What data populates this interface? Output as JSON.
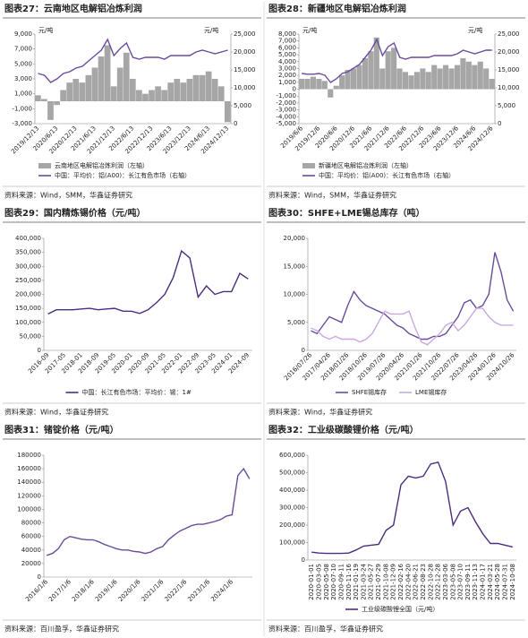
{
  "chart_data": [
    {
      "type": "bar_line",
      "title": "图表27：云南地区电解铝冶炼利润",
      "source": "资料来源：Wind，SMM，华鑫证券研究",
      "ylabel": "元/吨",
      "y2label": "元/吨",
      "categories": [
        "2019/12/13",
        null,
        null,
        "2020/6/13",
        null,
        null,
        "2020/12/13",
        null,
        null,
        "2021/6/13",
        null,
        null,
        "2021/12/13",
        null,
        null,
        "2022/6/13",
        null,
        null,
        "2022/12/13",
        null,
        null,
        "2023/6/13",
        null,
        null,
        "2023/12/13",
        null,
        null,
        "2024/6/13",
        null,
        null,
        "2024/12/13"
      ],
      "series": [
        {
          "name": "云南地区电解铝冶炼利润（左轴）",
          "color": "#a6a6a6",
          "style": "bar",
          "axis": "y",
          "values": [
            800,
            300,
            -2500,
            -500,
            1500,
            2500,
            3000,
            2500,
            3500,
            4500,
            6000,
            7500,
            2000,
            4500,
            6500,
            3000,
            1500,
            1000,
            1500,
            2000,
            1500,
            2500,
            3000,
            2500,
            3000,
            3500,
            3500,
            4000,
            3000,
            2000,
            -2800
          ]
        },
        {
          "name": "中国：平均价：铝(A00)：长江有色市场（右轴）",
          "color": "#6a4c9c",
          "style": "line",
          "axis": "y2",
          "values": [
            14000,
            13500,
            11500,
            12500,
            14000,
            14500,
            15500,
            16000,
            17500,
            19000,
            20500,
            23500,
            19000,
            21000,
            22500,
            18500,
            18000,
            18500,
            18500,
            18500,
            18000,
            19000,
            19000,
            19000,
            19000,
            20000,
            20500,
            20000,
            19500,
            20000,
            20500
          ]
        }
      ],
      "ylim": [
        -3000,
        9000
      ],
      "yticks": [
        {
          "value": -3000,
          "label": "-3,000"
        },
        {
          "value": -1000,
          "label": "-1,000"
        },
        {
          "value": 1000,
          "label": "1,000"
        },
        {
          "value": 3000,
          "label": "3,000"
        },
        {
          "value": 5000,
          "label": "5,000"
        },
        {
          "value": 7000,
          "label": "7,000"
        },
        {
          "value": 9000,
          "label": "9,000"
        }
      ],
      "y2lim": [
        0,
        25000
      ],
      "y2ticks": [
        0,
        {
          "value": 5000,
          "label": "5,000"
        },
        {
          "value": 10000,
          "label": "10,000"
        },
        {
          "value": 15000,
          "label": "15,000"
        },
        {
          "value": 20000,
          "label": "20,000"
        },
        {
          "value": 25000,
          "label": "25,000"
        }
      ]
    },
    {
      "type": "bar_line",
      "title": "图表28：新疆地区电解铝冶炼利润",
      "source": "资料来源：Wind，SMM，华鑫证券研究",
      "ylabel": "元/吨",
      "y2label": "元/吨",
      "categories": [
        "2019/6/6",
        null,
        null,
        "2019/12/6",
        null,
        null,
        "2020/6/6",
        null,
        null,
        "2020/12/6",
        null,
        null,
        "2021/6/6",
        null,
        null,
        "2021/12/6",
        null,
        null,
        "2022/6/6",
        null,
        null,
        "2022/12/6",
        null,
        null,
        "2023/6/6",
        null,
        null,
        "2023/12/6",
        null,
        null,
        "2024/6/6",
        null,
        null,
        "2024/12/6"
      ],
      "series": [
        {
          "name": "新疆地区电解铝冶炼利润（左轴）",
          "color": "#a6a6a6",
          "style": "bar",
          "axis": "y",
          "values": [
            1500,
            1500,
            1800,
            1500,
            1200,
            -1200,
            500,
            2000,
            2800,
            3000,
            3500,
            4500,
            5500,
            7500,
            3000,
            5500,
            6000,
            3000,
            2500,
            2000,
            2500,
            3000,
            2500,
            3500,
            3000,
            3500,
            3000,
            3500,
            4500,
            4000,
            3500,
            4000,
            3000,
            1500
          ]
        },
        {
          "name": "中国：平均价：铝(A00)：长江有色市场（右轴）",
          "color": "#6a4c9c",
          "style": "line",
          "axis": "y2",
          "values": [
            14000,
            13800,
            13800,
            14000,
            13500,
            11500,
            12500,
            14000,
            14500,
            15500,
            16500,
            18500,
            20500,
            23500,
            19000,
            21500,
            22500,
            18500,
            18000,
            18500,
            18500,
            18500,
            18500,
            19000,
            19000,
            19000,
            19000,
            19500,
            20500,
            20000,
            19500,
            20000,
            20500,
            20500
          ]
        }
      ],
      "ylim": [
        -5000,
        8000
      ],
      "yticks": [
        {
          "value": -5000,
          "label": "-5,000"
        },
        {
          "value": -4000,
          "label": "-4,000"
        },
        {
          "value": -3000,
          "label": "-3,000"
        },
        {
          "value": -2000,
          "label": "-2,000"
        },
        {
          "value": -1000,
          "label": "-1,000"
        },
        0,
        {
          "value": 1000,
          "label": "1,000"
        },
        {
          "value": 2000,
          "label": "2,000"
        },
        {
          "value": 3000,
          "label": "3,000"
        },
        {
          "value": 4000,
          "label": "4,000"
        },
        {
          "value": 5000,
          "label": "5,000"
        },
        {
          "value": 6000,
          "label": "6,000"
        },
        {
          "value": 7000,
          "label": "7,000"
        },
        {
          "value": 8000,
          "label": "8,000"
        }
      ],
      "y2lim": [
        0,
        25000
      ],
      "y2ticks": [
        0,
        {
          "value": 5000,
          "label": "5,000"
        },
        {
          "value": 10000,
          "label": "10,000"
        },
        {
          "value": 15000,
          "label": "15,000"
        },
        {
          "value": 20000,
          "label": "20,000"
        },
        {
          "value": 25000,
          "label": "25,000"
        }
      ]
    },
    {
      "type": "line",
      "title": "图表29：国内精炼锡价格（元/吨）",
      "source": "资料来源：Wind，华鑫证券研究",
      "categories": [
        "2016-09",
        null,
        "2017-05",
        null,
        "2018-01",
        null,
        "2018-09",
        null,
        "2019-05",
        null,
        "2020-01",
        null,
        "2020-09",
        null,
        "2021-05",
        null,
        "2022-01",
        null,
        "2022-09",
        null,
        "2023-05",
        null,
        "2024-01",
        null,
        "2024-09"
      ],
      "series": [
        {
          "name": "中国：长江有色市场：平均价：锡：1#",
          "color": "#4b2d7f",
          "values": [
            130000,
            145000,
            145000,
            145000,
            148000,
            150000,
            145000,
            148000,
            150000,
            140000,
            140000,
            132000,
            145000,
            170000,
            200000,
            260000,
            355000,
            330000,
            190000,
            230000,
            200000,
            210000,
            210000,
            275000,
            255000
          ]
        }
      ],
      "ylim": [
        0,
        400000
      ],
      "yticks": [
        0,
        {
          "value": 50000,
          "label": "50,000"
        },
        {
          "value": 100000,
          "label": "100,000"
        },
        {
          "value": 150000,
          "label": "150,000"
        },
        {
          "value": 200000,
          "label": "200,000"
        },
        {
          "value": 250000,
          "label": "250,000"
        },
        {
          "value": 300000,
          "label": "300,000"
        },
        {
          "value": 350000,
          "label": "350,000"
        },
        {
          "value": 400000,
          "label": "400,000"
        }
      ]
    },
    {
      "type": "line",
      "title": "图表30：SHFE+LME锡总库存（吨）",
      "source": "资料来源：Wind，华鑫证券研究",
      "categories": [
        "2016/07/26",
        null,
        null,
        "2017/04/26",
        null,
        null,
        "2018/01/26",
        null,
        null,
        "2018/10/26",
        null,
        null,
        "2019/07/26",
        null,
        null,
        "2020/04/26",
        null,
        null,
        "2021/01/26",
        null,
        null,
        "2021/10/26",
        null,
        null,
        "2022/07/26",
        null,
        null,
        "2023/04/26",
        null,
        null,
        "2024/01/26",
        null,
        null,
        "2024/10/26"
      ],
      "series": [
        {
          "name": "SHFE锡库存",
          "color": "#6a4c9c",
          "values": [
            3500,
            3000,
            4500,
            6000,
            5500,
            5000,
            8000,
            10500,
            9000,
            8000,
            7500,
            7000,
            6500,
            5500,
            4500,
            4000,
            3000,
            2500,
            2000,
            2000,
            2500,
            2500,
            3000,
            4500,
            6000,
            8500,
            9000,
            7500,
            8000,
            10000,
            17500,
            14000,
            9000,
            7000
          ]
        },
        {
          "name": "LME锡库存",
          "color": "#c9a8e0",
          "values": [
            4000,
            3500,
            2500,
            2000,
            2500,
            2000,
            2000,
            2000,
            1500,
            2000,
            3000,
            5000,
            7000,
            6500,
            6500,
            6500,
            7000,
            4000,
            1500,
            1000,
            2000,
            3000,
            4500,
            5000,
            3500,
            4500,
            6000,
            7500,
            7500,
            6000,
            5000,
            4500,
            4500,
            4500
          ]
        }
      ],
      "ylim": [
        0,
        20000
      ],
      "yticks": [
        0,
        {
          "value": 5000,
          "label": "5,000"
        },
        {
          "value": 10000,
          "label": "10,000"
        },
        {
          "value": 15000,
          "label": "15,000"
        },
        {
          "value": 20000,
          "label": "20,000"
        }
      ]
    },
    {
      "type": "line",
      "title": "图表31：锗锭价格（元/吨）",
      "source": "资料来源：百川盈孚，华鑫证券研究",
      "categories": [
        "2016/1/6",
        null,
        null,
        null,
        "2017/1/6",
        null,
        null,
        null,
        "2018/1/6",
        null,
        null,
        null,
        "2019/1/6",
        null,
        null,
        null,
        "2020/1/6",
        null,
        null,
        null,
        "2021/1/6",
        null,
        null,
        null,
        "2022/1/6",
        null,
        null,
        null,
        "2023/1/6",
        null,
        null,
        null,
        "2024/1/6",
        null,
        null,
        null
      ],
      "series": [
        {
          "color": "#6a4c9c",
          "values": [
            32000,
            35000,
            42000,
            55000,
            60000,
            58000,
            56000,
            55000,
            55000,
            52000,
            48000,
            45000,
            42000,
            40000,
            40000,
            38000,
            37000,
            35000,
            37000,
            42000,
            45000,
            55000,
            62000,
            68000,
            72000,
            76000,
            78000,
            78000,
            80000,
            82000,
            85000,
            90000,
            92000,
            150000,
            160000,
            145000
          ]
        }
      ],
      "ylim": [
        0,
        180000
      ],
      "yticks": [
        0,
        20000,
        40000,
        60000,
        80000,
        100000,
        120000,
        140000,
        160000,
        180000
      ]
    },
    {
      "type": "line",
      "title": "图表32：工业级碳酸锂价格（元/吨）",
      "source": "资料来源：百川盈孚，华鑫证券研究",
      "categories": [
        "2020-01-01",
        "2020-03-05",
        "2020-05-08",
        "2020-07-10",
        "2020-09-11",
        "2020-11-16",
        "2021-01-19",
        "2021-03-24",
        "2021-05-27",
        "2021-07-29",
        "2021-10-08",
        "2021-12-09",
        "2022-02-16",
        "2022-04-20",
        "2022-06-21",
        "2022-08-23",
        "2022-10-28",
        "2022-12-28",
        "2023-03-06",
        "2023-05-08",
        "2023-07-10",
        "2023-09-11",
        "2023-11-13",
        "2024-01-17",
        "2024-03-21",
        "2024-05-28",
        "2024-07-31",
        "2024-10-08"
      ],
      "series": [
        {
          "name": "工业级碳酸锂全国（元/吨）",
          "color": "#4b2d7f",
          "values": [
            45000,
            40000,
            38000,
            38000,
            38000,
            40000,
            58000,
            80000,
            85000,
            90000,
            170000,
            200000,
            430000,
            480000,
            470000,
            480000,
            550000,
            560000,
            450000,
            200000,
            280000,
            300000,
            220000,
            150000,
            95000,
            95000,
            85000,
            75000
          ]
        }
      ],
      "ylim": [
        0,
        600000
      ],
      "yticks": [
        0,
        {
          "value": 100000,
          "label": "100,000"
        },
        {
          "value": 200000,
          "label": "200,000"
        },
        {
          "value": 300000,
          "label": "300,000"
        },
        {
          "value": 400000,
          "label": "400,000"
        },
        {
          "value": 500000,
          "label": "500,000"
        },
        {
          "value": 600000,
          "label": "600,000"
        }
      ]
    }
  ]
}
